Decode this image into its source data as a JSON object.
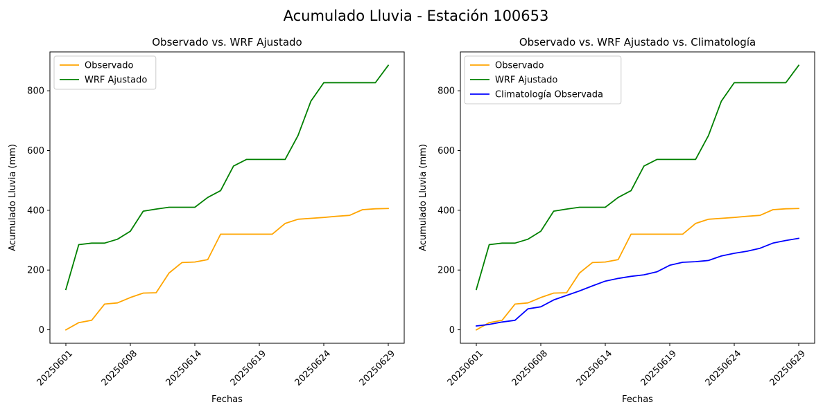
{
  "figure": {
    "suptitle": "Acumulado Lluvia - Estación 100653"
  },
  "colors": {
    "observado": "#ffa500",
    "wrf": "#008000",
    "clima": "#0000ff"
  },
  "chart_data": [
    {
      "type": "line",
      "title": "Observado vs. WRF Ajustado",
      "xlabel": "Fechas",
      "ylabel": "Acumulado Lluvia (mm)",
      "legend_position": "upper-left",
      "x_tick_labels": [
        "20250601",
        "20250608",
        "20250614",
        "20250619",
        "20250624",
        "20250629"
      ],
      "y_ticks": [
        0,
        200,
        400,
        600,
        800
      ],
      "ylim": [
        -45,
        930
      ],
      "series": [
        {
          "name": "Observado",
          "color": "#ffa500",
          "values": [
            0,
            24,
            32,
            86,
            90,
            108,
            123,
            124,
            190,
            225,
            227,
            235,
            320,
            320,
            320,
            320,
            320,
            356,
            370,
            373,
            376,
            380,
            383,
            402,
            405,
            406
          ]
        },
        {
          "name": "WRF Ajustado",
          "color": "#008000",
          "values": [
            135,
            285,
            290,
            290,
            303,
            330,
            397,
            404,
            410,
            410,
            410,
            443,
            466,
            548,
            570,
            570,
            570,
            570,
            650,
            765,
            827,
            827,
            827,
            827,
            827,
            885
          ]
        }
      ]
    },
    {
      "type": "line",
      "title": "Observado vs. WRF Ajustado vs. Climatología",
      "xlabel": "Fechas",
      "ylabel": "Acumulado Lluvia (mm)",
      "legend_position": "upper-left",
      "x_tick_labels": [
        "20250601",
        "20250608",
        "20250614",
        "20250619",
        "20250624",
        "20250629"
      ],
      "y_ticks": [
        0,
        200,
        400,
        600,
        800
      ],
      "ylim": [
        -45,
        930
      ],
      "series": [
        {
          "name": "Observado",
          "color": "#ffa500",
          "values": [
            0,
            24,
            32,
            86,
            90,
            108,
            123,
            124,
            190,
            225,
            227,
            235,
            320,
            320,
            320,
            320,
            320,
            356,
            370,
            373,
            376,
            380,
            383,
            402,
            405,
            406
          ]
        },
        {
          "name": "WRF Ajustado",
          "color": "#008000",
          "values": [
            135,
            285,
            290,
            290,
            303,
            330,
            397,
            404,
            410,
            410,
            410,
            443,
            466,
            548,
            570,
            570,
            570,
            570,
            650,
            765,
            827,
            827,
            827,
            827,
            827,
            885
          ]
        },
        {
          "name": "Climatología Observada",
          "color": "#0000ff",
          "values": [
            13,
            18,
            26,
            32,
            70,
            77,
            100,
            115,
            130,
            147,
            163,
            172,
            179,
            184,
            194,
            216,
            226,
            228,
            232,
            247,
            256,
            263,
            273,
            290,
            299,
            306
          ]
        }
      ]
    }
  ]
}
